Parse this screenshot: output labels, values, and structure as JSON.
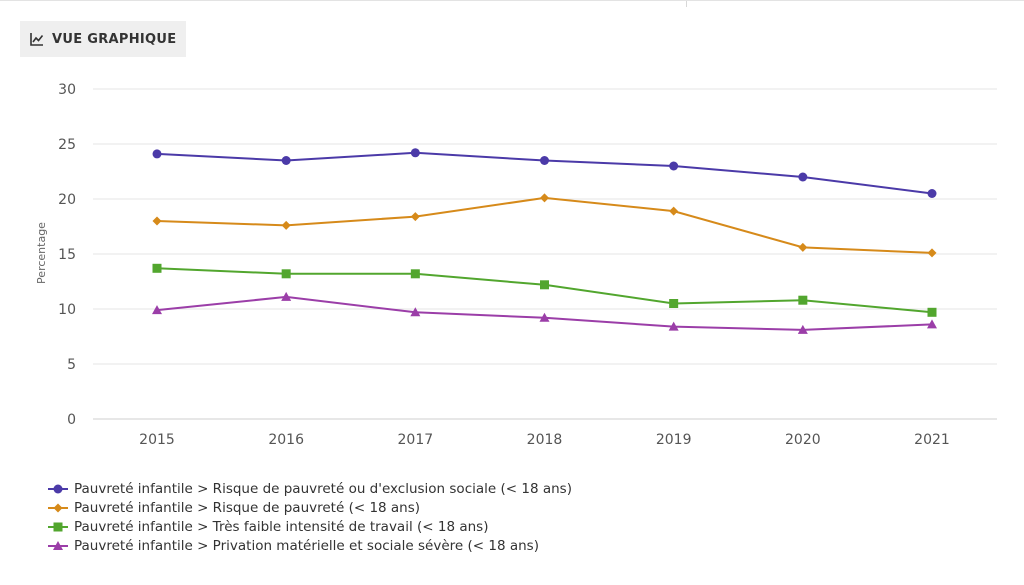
{
  "tab": {
    "label": "VUE GRAPHIQUE",
    "icon": "line-chart-icon"
  },
  "chart_data": {
    "type": "line",
    "x": [
      "2015",
      "2016",
      "2017",
      "2018",
      "2019",
      "2020",
      "2021"
    ],
    "ylabel": "Percentage",
    "xlabel": "",
    "ylim": [
      0,
      30
    ],
    "yticks": [
      0,
      5,
      10,
      15,
      20,
      25,
      30
    ],
    "grid": true,
    "legend_position": "bottom-left",
    "series": [
      {
        "name": "Pauvreté infantile > Risque de pauvreté ou d'exclusion sociale (< 18 ans)",
        "color": "#4b3aa8",
        "marker": "circle",
        "values": [
          24.1,
          23.5,
          24.2,
          23.5,
          23.0,
          22.0,
          20.5
        ]
      },
      {
        "name": "Pauvreté infantile > Risque de pauvreté (< 18 ans)",
        "color": "#d68a1a",
        "marker": "diamond",
        "values": [
          18.0,
          17.6,
          18.4,
          20.1,
          18.9,
          15.6,
          15.1
        ]
      },
      {
        "name": "Pauvreté infantile > Très faible intensité de travail (< 18 ans)",
        "color": "#52a62e",
        "marker": "square",
        "values": [
          13.7,
          13.2,
          13.2,
          12.2,
          10.5,
          10.8,
          9.7
        ]
      },
      {
        "name": "Pauvreté infantile > Privation matérielle et sociale sévère (< 18 ans)",
        "color": "#9b3ea8",
        "marker": "triangle",
        "values": [
          9.9,
          11.1,
          9.7,
          9.2,
          8.4,
          8.1,
          8.6
        ]
      }
    ]
  }
}
